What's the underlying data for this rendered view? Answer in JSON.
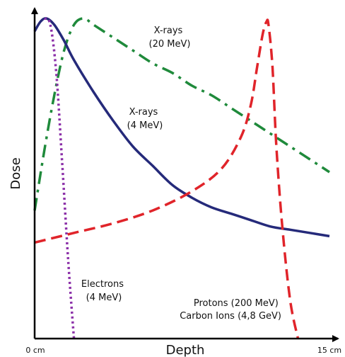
{
  "chart_data": {
    "type": "line",
    "xlabel": "Depth",
    "ylabel": "Dose",
    "x_tick_labels": [
      "0 cm",
      "15 cm"
    ],
    "xlim": [
      0,
      15
    ],
    "ylim": [
      0,
      1
    ],
    "grid": false,
    "legend": "none (series labeled directly on plot)",
    "series": [
      {
        "key": "xray20",
        "label_lines": [
          "X-rays",
          "(20 MeV)"
        ],
        "color": "#1f8a3b",
        "style": "dashdot",
        "x": [
          0,
          0.5,
          1.0,
          1.5,
          2.0,
          2.5,
          3.0,
          4.0,
          5.0,
          6.0,
          7.0,
          8.0,
          9.0,
          10.0,
          11.0,
          12.0,
          13.0,
          14.0,
          15.0
        ],
        "y": [
          0.4,
          0.59,
          0.76,
          0.9,
          0.98,
          1.0,
          0.98,
          0.94,
          0.9,
          0.86,
          0.83,
          0.79,
          0.76,
          0.72,
          0.68,
          0.64,
          0.6,
          0.56,
          0.52
        ]
      },
      {
        "key": "xray4",
        "label_lines": [
          "X-rays",
          "(4 MeV)"
        ],
        "color": "#252a7a",
        "style": "solid",
        "x": [
          0,
          0.3,
          0.6,
          1.0,
          1.5,
          2.0,
          3.0,
          4.0,
          5.0,
          6.0,
          7.0,
          8.0,
          9.0,
          10.0,
          11.0,
          12.0,
          13.0,
          14.0,
          15.0
        ],
        "y": [
          0.96,
          0.99,
          1.0,
          0.98,
          0.93,
          0.87,
          0.77,
          0.68,
          0.6,
          0.54,
          0.48,
          0.44,
          0.41,
          0.39,
          0.37,
          0.35,
          0.34,
          0.33,
          0.32
        ]
      },
      {
        "key": "electrons",
        "label_lines": [
          "Electrons",
          "(4 MeV)"
        ],
        "color": "#8b2fa8",
        "style": "dotted",
        "x": [
          0.5,
          0.8,
          1.1,
          1.4,
          1.7,
          2.0
        ],
        "y": [
          1.0,
          0.98,
          0.83,
          0.55,
          0.25,
          0.0
        ]
      },
      {
        "key": "protons",
        "label_lines": [
          "Protons (200 MeV)",
          "Carbon Ions (4,8 GeV)"
        ],
        "color": "#e0242a",
        "style": "dashed",
        "x": [
          0,
          2.0,
          4.0,
          6.0,
          8.0,
          9.5,
          10.5,
          11.0,
          11.3,
          11.6,
          11.8,
          11.9,
          12.1,
          12.3,
          12.6,
          13.0,
          13.4
        ],
        "y": [
          0.3,
          0.33,
          0.36,
          0.4,
          0.46,
          0.53,
          0.63,
          0.73,
          0.84,
          0.95,
          0.99,
          0.98,
          0.85,
          0.6,
          0.35,
          0.12,
          0.0
        ]
      }
    ]
  }
}
